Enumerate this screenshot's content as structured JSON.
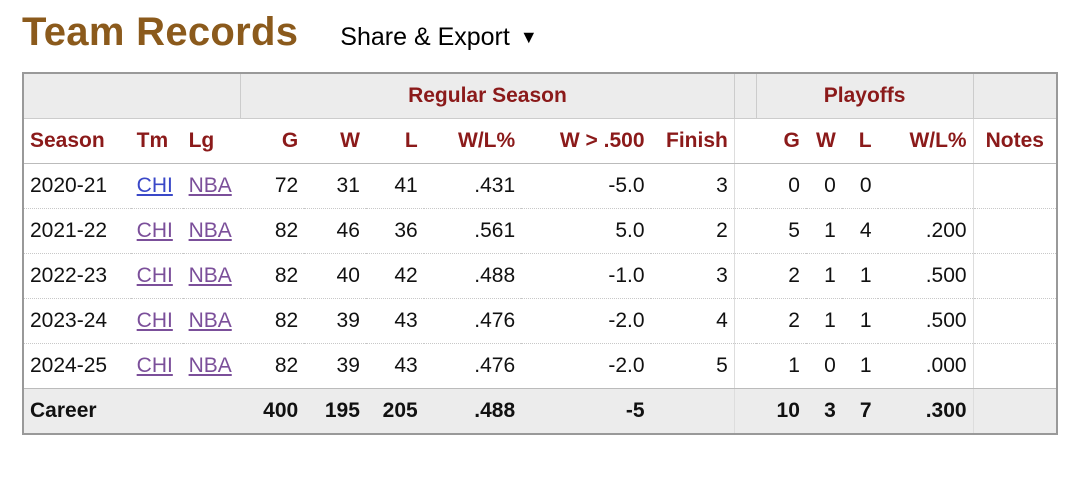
{
  "header": {
    "title": "Team Records",
    "share_label": "Share & Export",
    "share_caret": "▼"
  },
  "table": {
    "groups": {
      "regular": "Regular Season",
      "playoffs": "Playoffs"
    },
    "columns": [
      "Season",
      "Tm",
      "Lg",
      "G",
      "W",
      "L",
      "W/L%",
      "W > .500",
      "Finish",
      "G",
      "W",
      "L",
      "W/L%",
      "Notes"
    ],
    "rows": [
      {
        "season": "2020-21",
        "tm": "CHI",
        "lg": "NBA",
        "g": "72",
        "w": "31",
        "l": "41",
        "wl": ".431",
        "w500": "-5.0",
        "finish": "3",
        "pg": "0",
        "pw": "0",
        "pl": "0",
        "pwl": "",
        "notes": ""
      },
      {
        "season": "2021-22",
        "tm": "CHI",
        "lg": "NBA",
        "g": "82",
        "w": "46",
        "l": "36",
        "wl": ".561",
        "w500": "5.0",
        "finish": "2",
        "pg": "5",
        "pw": "1",
        "pl": "4",
        "pwl": ".200",
        "notes": ""
      },
      {
        "season": "2022-23",
        "tm": "CHI",
        "lg": "NBA",
        "g": "82",
        "w": "40",
        "l": "42",
        "wl": ".488",
        "w500": "-1.0",
        "finish": "3",
        "pg": "2",
        "pw": "1",
        "pl": "1",
        "pwl": ".500",
        "notes": ""
      },
      {
        "season": "2023-24",
        "tm": "CHI",
        "lg": "NBA",
        "g": "82",
        "w": "39",
        "l": "43",
        "wl": ".476",
        "w500": "-2.0",
        "finish": "4",
        "pg": "2",
        "pw": "1",
        "pl": "1",
        "pwl": ".500",
        "notes": ""
      },
      {
        "season": "2024-25",
        "tm": "CHI",
        "lg": "NBA",
        "g": "82",
        "w": "39",
        "l": "43",
        "wl": ".476",
        "w500": "-2.0",
        "finish": "5",
        "pg": "1",
        "pw": "0",
        "pl": "1",
        "pwl": ".000",
        "notes": ""
      }
    ],
    "career": {
      "label": "Career",
      "g": "400",
      "w": "195",
      "l": "205",
      "wl": ".488",
      "w500": "-5",
      "pg": "10",
      "pw": "3",
      "pl": "7",
      "pwl": ".300"
    }
  },
  "colors": {
    "title": "#8b5a1c",
    "header_text": "#8b1a1a",
    "link": "#3a48c8",
    "visited_link": "#7b4f9a",
    "header_bg": "#ececec"
  }
}
